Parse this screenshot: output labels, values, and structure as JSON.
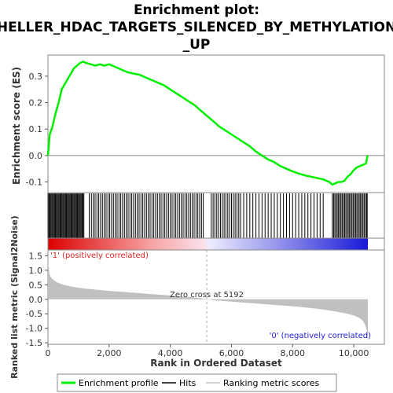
{
  "chart_data": {
    "type": "line",
    "title_lines": [
      "Enrichment plot:",
      "HELLER_HDAC_TARGETS_SILENCED_BY_METHYLATION",
      "_UP"
    ],
    "es_panel": {
      "ylabel": "Enrichment score (ES)",
      "ylim": [
        -0.14,
        0.38
      ],
      "yticks": [
        -0.1,
        0.0,
        0.1,
        0.2,
        0.3
      ],
      "ytick_labels": [
        "-0.1",
        "0.0",
        "0.1",
        "0.2",
        "0.3"
      ],
      "series": [
        {
          "name": "Enrichment profile",
          "color": "#00ee00",
          "x": [
            0,
            60,
            150,
            250,
            350,
            450,
            550,
            650,
            750,
            850,
            950,
            1050,
            1150,
            1250,
            1400,
            1550,
            1700,
            1850,
            2000,
            2200,
            2400,
            2600,
            2800,
            3000,
            3200,
            3400,
            3600,
            3800,
            4000,
            4200,
            4400,
            4600,
            4800,
            5000,
            5200,
            5400,
            5600,
            5800,
            6000,
            6200,
            6400,
            6600,
            6800,
            7000,
            7200,
            7400,
            7600,
            7800,
            8000,
            8200,
            8400,
            8600,
            8800,
            9000,
            9200,
            9300,
            9400,
            9500,
            9600,
            9700,
            9800,
            9900,
            10000,
            10100,
            10200,
            10300,
            10400,
            10450
          ],
          "y": [
            0.0,
            0.08,
            0.11,
            0.16,
            0.2,
            0.25,
            0.27,
            0.29,
            0.31,
            0.33,
            0.34,
            0.35,
            0.355,
            0.35,
            0.345,
            0.34,
            0.345,
            0.34,
            0.345,
            0.335,
            0.325,
            0.315,
            0.31,
            0.305,
            0.295,
            0.285,
            0.275,
            0.265,
            0.25,
            0.235,
            0.22,
            0.205,
            0.19,
            0.17,
            0.15,
            0.13,
            0.11,
            0.095,
            0.08,
            0.065,
            0.05,
            0.035,
            0.015,
            0.0,
            -0.015,
            -0.025,
            -0.04,
            -0.05,
            -0.06,
            -0.068,
            -0.075,
            -0.08,
            -0.085,
            -0.09,
            -0.1,
            -0.11,
            -0.105,
            -0.1,
            -0.1,
            -0.095,
            -0.08,
            -0.07,
            -0.055,
            -0.045,
            -0.04,
            -0.035,
            -0.03,
            0.0
          ]
        }
      ]
    },
    "hits": {
      "name": "Hits",
      "positions": [
        5,
        35,
        65,
        95,
        125,
        155,
        185,
        215,
        245,
        275,
        305,
        335,
        365,
        395,
        425,
        455,
        485,
        515,
        545,
        575,
        605,
        635,
        665,
        695,
        725,
        755,
        785,
        815,
        845,
        875,
        905,
        935,
        965,
        995,
        1025,
        1055,
        1085,
        1115,
        1145,
        1175,
        1350,
        1420,
        1480,
        1540,
        1600,
        1660,
        1720,
        1780,
        1840,
        1900,
        1960,
        2020,
        2080,
        2140,
        2200,
        2260,
        2320,
        2380,
        2440,
        2500,
        2560,
        2620,
        2680,
        2740,
        2800,
        2860,
        2920,
        2980,
        3040,
        3100,
        3160,
        3220,
        3280,
        3340,
        3400,
        3460,
        3520,
        3580,
        3640,
        3700,
        3760,
        3820,
        3880,
        3940,
        4000,
        4060,
        4120,
        4180,
        4240,
        4300,
        4360,
        4420,
        4480,
        4540,
        4600,
        4660,
        4720,
        4780,
        4840,
        4900,
        4960,
        5020,
        5080,
        5340,
        5400,
        5460,
        5520,
        5580,
        5640,
        5700,
        5760,
        5820,
        5880,
        5940,
        6000,
        6060,
        6120,
        6180,
        6240,
        6300,
        6400,
        6500,
        6600,
        6700,
        6800,
        6900,
        7000,
        7100,
        7200,
        7300,
        7400,
        7500,
        7600,
        7700,
        7800,
        7900,
        8000,
        8100,
        8200,
        8300,
        8400,
        8500,
        8600,
        8700,
        8800,
        8900,
        9000,
        9300,
        9340,
        9380,
        9420,
        9460,
        9500,
        9540,
        9580,
        9620,
        9660,
        9700,
        9740,
        9780,
        9820,
        9860,
        9900,
        9940,
        9980,
        10020,
        10060,
        10100,
        10140,
        10180,
        10220,
        10260,
        10300,
        10340,
        10380,
        10420,
        10440
      ]
    },
    "ranked_metric": {
      "name": "Ranking metric scores",
      "ylabel": "Ranked list metric (Signal2Noise)",
      "ylim": [
        -1.55,
        1.7
      ],
      "yticks": [
        -1.5,
        -1.0,
        -0.5,
        0.0,
        0.5,
        1.0,
        1.5
      ],
      "ytick_labels": [
        "-1.5",
        "-1.0",
        "-0.5",
        "0.0",
        "0.5",
        "1.0",
        "1.5"
      ],
      "x": [
        0,
        10,
        30,
        60,
        100,
        200,
        300,
        500,
        800,
        1200,
        1600,
        2000,
        2500,
        3000,
        3500,
        4000,
        4500,
        5000,
        5192,
        5500,
        6000,
        6500,
        7000,
        7500,
        8000,
        8500,
        9000,
        9400,
        9800,
        10000,
        10200,
        10300,
        10380,
        10430,
        10460
      ],
      "y": [
        1.55,
        1.2,
        1.0,
        0.85,
        0.75,
        0.65,
        0.58,
        0.5,
        0.43,
        0.37,
        0.33,
        0.29,
        0.25,
        0.21,
        0.17,
        0.13,
        0.09,
        0.04,
        0.0,
        -0.04,
        -0.08,
        -0.12,
        -0.16,
        -0.2,
        -0.24,
        -0.29,
        -0.35,
        -0.42,
        -0.5,
        -0.56,
        -0.65,
        -0.75,
        -0.9,
        -1.1,
        -1.42
      ],
      "zero_cross_label": "Zero cross at 5192",
      "zero_cross": 5192,
      "pos_label": "'1' (positively correlated)",
      "neg_label": "'0' (negatively correlated)"
    },
    "xaxis": {
      "xlabel": "Rank in Ordered Dataset",
      "xlim": [
        0,
        11000
      ],
      "xticks": [
        0,
        2000,
        4000,
        6000,
        8000,
        10000
      ],
      "xtick_labels": [
        "0",
        "2,000",
        "4,000",
        "6,000",
        "8,000",
        "10,000"
      ],
      "dataset_size": 10460
    },
    "legend": {
      "placement": "bottom",
      "entries": [
        {
          "label": "Enrichment profile",
          "color": "#00ee00"
        },
        {
          "label": "Hits",
          "color": "#000000"
        },
        {
          "label": "Ranking metric scores",
          "color": "#c0c0c0"
        }
      ]
    }
  }
}
